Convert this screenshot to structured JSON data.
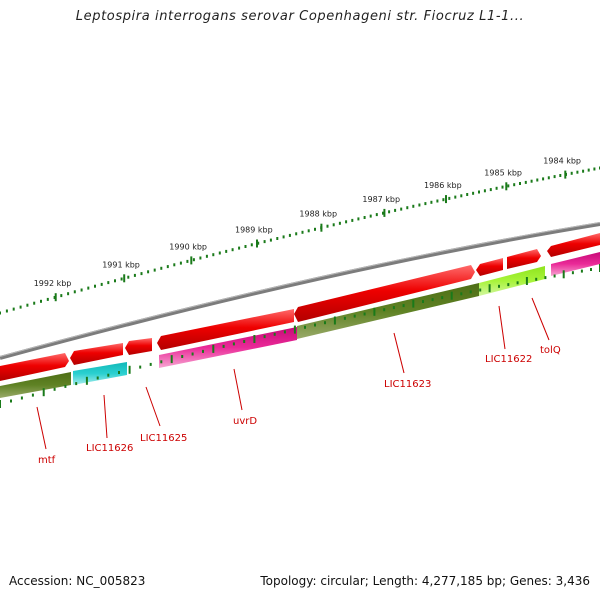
{
  "title": "Leptospira interrogans serovar Copenhageni str. Fiocruz L1-1...",
  "footer": {
    "accession": "Accession: NC_005823",
    "summary": "Topology: circular; Length: 4,277,185 bp; Genes: 3,436"
  },
  "ruler": {
    "unit_suffix": " kbp",
    "labels": [
      {
        "kbp": 1984,
        "text": "1984 kbp"
      },
      {
        "kbp": 1985,
        "text": "1985 kbp"
      },
      {
        "kbp": 1986,
        "text": "1986 kbp"
      },
      {
        "kbp": 1987,
        "text": "1987 kbp"
      },
      {
        "kbp": 1988,
        "text": "1988 kbp"
      },
      {
        "kbp": 1989,
        "text": "1989 kbp"
      },
      {
        "kbp": 1990,
        "text": "1990 kbp"
      },
      {
        "kbp": 1991,
        "text": "1991 kbp"
      },
      {
        "kbp": 1992,
        "text": "1992 kbp"
      }
    ]
  },
  "gene_labels": [
    "tolQ",
    "LIC11622",
    "LIC11623",
    "uvrD",
    "LIC11625",
    "LIC11626",
    "mtf"
  ],
  "colors": {
    "backbone": "#8a8a8a",
    "cds": "#e00000",
    "ruler_tick": "#1a7a1a",
    "label_text": "#cc0000",
    "gene_olive": "#5a7a1e",
    "gene_lime": "#9ef230",
    "gene_cyan": "#22cccc",
    "gene_pink": "#e0168c"
  }
}
